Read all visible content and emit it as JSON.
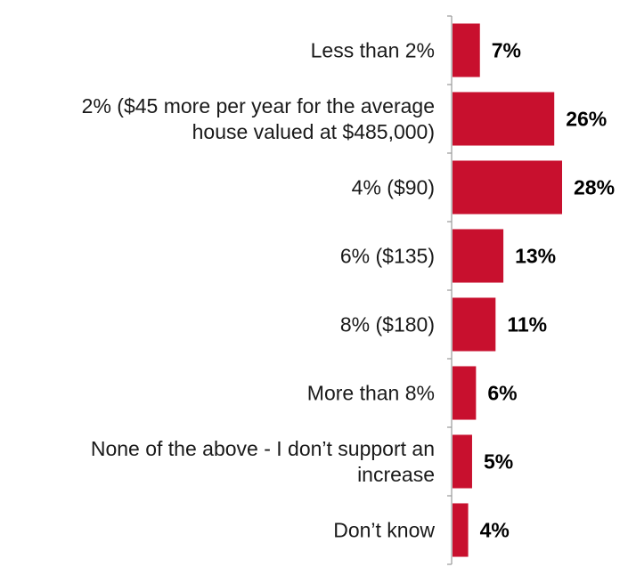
{
  "chart_data": {
    "type": "bar",
    "orientation": "horizontal",
    "categories": [
      [
        "Less than 2%"
      ],
      [
        "2% ($45 more per year for the average",
        "house valued at $485,000)"
      ],
      [
        "4% ($90)"
      ],
      [
        "6% ($135)"
      ],
      [
        "8% ($180)"
      ],
      [
        "More than 8%"
      ],
      [
        "None of the above - I don’t support an",
        "increase"
      ],
      [
        "Don’t know"
      ]
    ],
    "values": [
      7,
      26,
      28,
      13,
      11,
      6,
      5,
      4
    ],
    "value_labels": [
      "7%",
      "26%",
      "28%",
      "13%",
      "11%",
      "6%",
      "5%",
      "4%"
    ],
    "title": "",
    "xlabel": "",
    "ylabel": "",
    "xlim": [
      0,
      28
    ],
    "grid": false,
    "legend": "none",
    "bar_color": "#c8102e"
  }
}
